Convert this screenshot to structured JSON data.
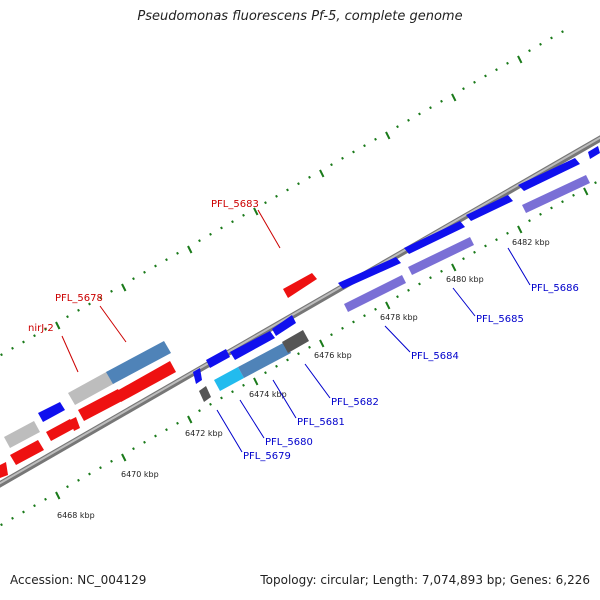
{
  "title": "Pseudomonas fluorescens Pf-5, complete genome",
  "footer": {
    "accession": "Accession: NC_004129",
    "stats": "Topology: circular; Length: 7,074,893 bp; Genes: 6,226"
  },
  "ticks": [
    "6468 kbp",
    "6470 kbp",
    "6472 kbp",
    "6474 kbp",
    "6476 kbp",
    "6478 kbp",
    "6480 kbp",
    "6482 kbp"
  ],
  "genes": [
    {
      "name": "nirJ-2",
      "color": "#cc0000"
    },
    {
      "name": "PFL_5678",
      "color": "#cc0000"
    },
    {
      "name": "PFL_5683",
      "color": "#cc0000"
    },
    {
      "name": "PFL_5679",
      "color": "#0000cc"
    },
    {
      "name": "PFL_5680",
      "color": "#0000cc"
    },
    {
      "name": "PFL_5681",
      "color": "#0000cc"
    },
    {
      "name": "PFL_5682",
      "color": "#0000cc"
    },
    {
      "name": "PFL_5684",
      "color": "#0000cc"
    },
    {
      "name": "PFL_5685",
      "color": "#0000cc"
    },
    {
      "name": "PFL_5686",
      "color": "#0000cc"
    }
  ],
  "colors": {
    "forward_cds": "#1010ee",
    "reverse_cds": "#ee1111",
    "forward_feature": "#7a6fd6",
    "reverse_feature": "#4f83b8",
    "backbone": "#8a8a8a",
    "tick": "#1a7a1a"
  }
}
